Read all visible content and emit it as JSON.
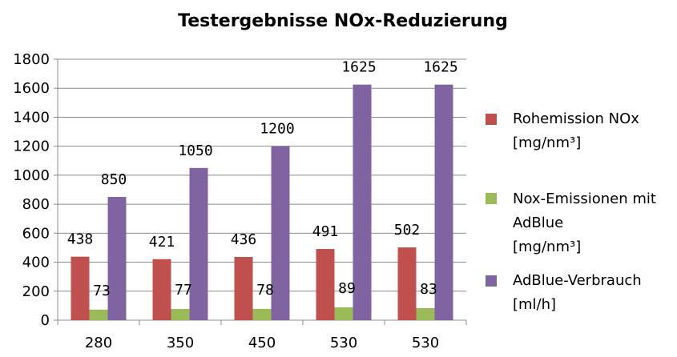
{
  "chart_data": {
    "type": "bar",
    "title": "Testergebnisse  NOx-Reduzierung",
    "xlabel": "",
    "ylabel": "",
    "categories": [
      "280",
      "350",
      "450",
      "530",
      "530"
    ],
    "ylim": [
      0,
      1800
    ],
    "yticks": [
      0,
      200,
      400,
      600,
      800,
      1000,
      1200,
      1400,
      1600,
      1800
    ],
    "grid": true,
    "legend_position": "right",
    "series": [
      {
        "name": "Rohemission NOx [mg/nm³]",
        "legend_lines": [
          "Rohemission NOx",
          "[mg/nm³]"
        ],
        "color": "#c0504d",
        "values": [
          438,
          421,
          436,
          491,
          502
        ]
      },
      {
        "name": "Nox-Emissionen mit AdBlue [mg/nm³]",
        "legend_lines": [
          "Nox-Emissionen mit",
          "AdBlue",
          "[mg/nm³]"
        ],
        "color": "#9bbb59",
        "values": [
          73,
          77,
          78,
          89,
          83
        ]
      },
      {
        "name": "AdBlue-Verbrauch [ml/h]",
        "legend_lines": [
          "AdBlue-Verbrauch",
          "[ml/h]"
        ],
        "color": "#8064a2",
        "values": [
          850,
          1050,
          1200,
          1625,
          1625
        ]
      }
    ]
  }
}
